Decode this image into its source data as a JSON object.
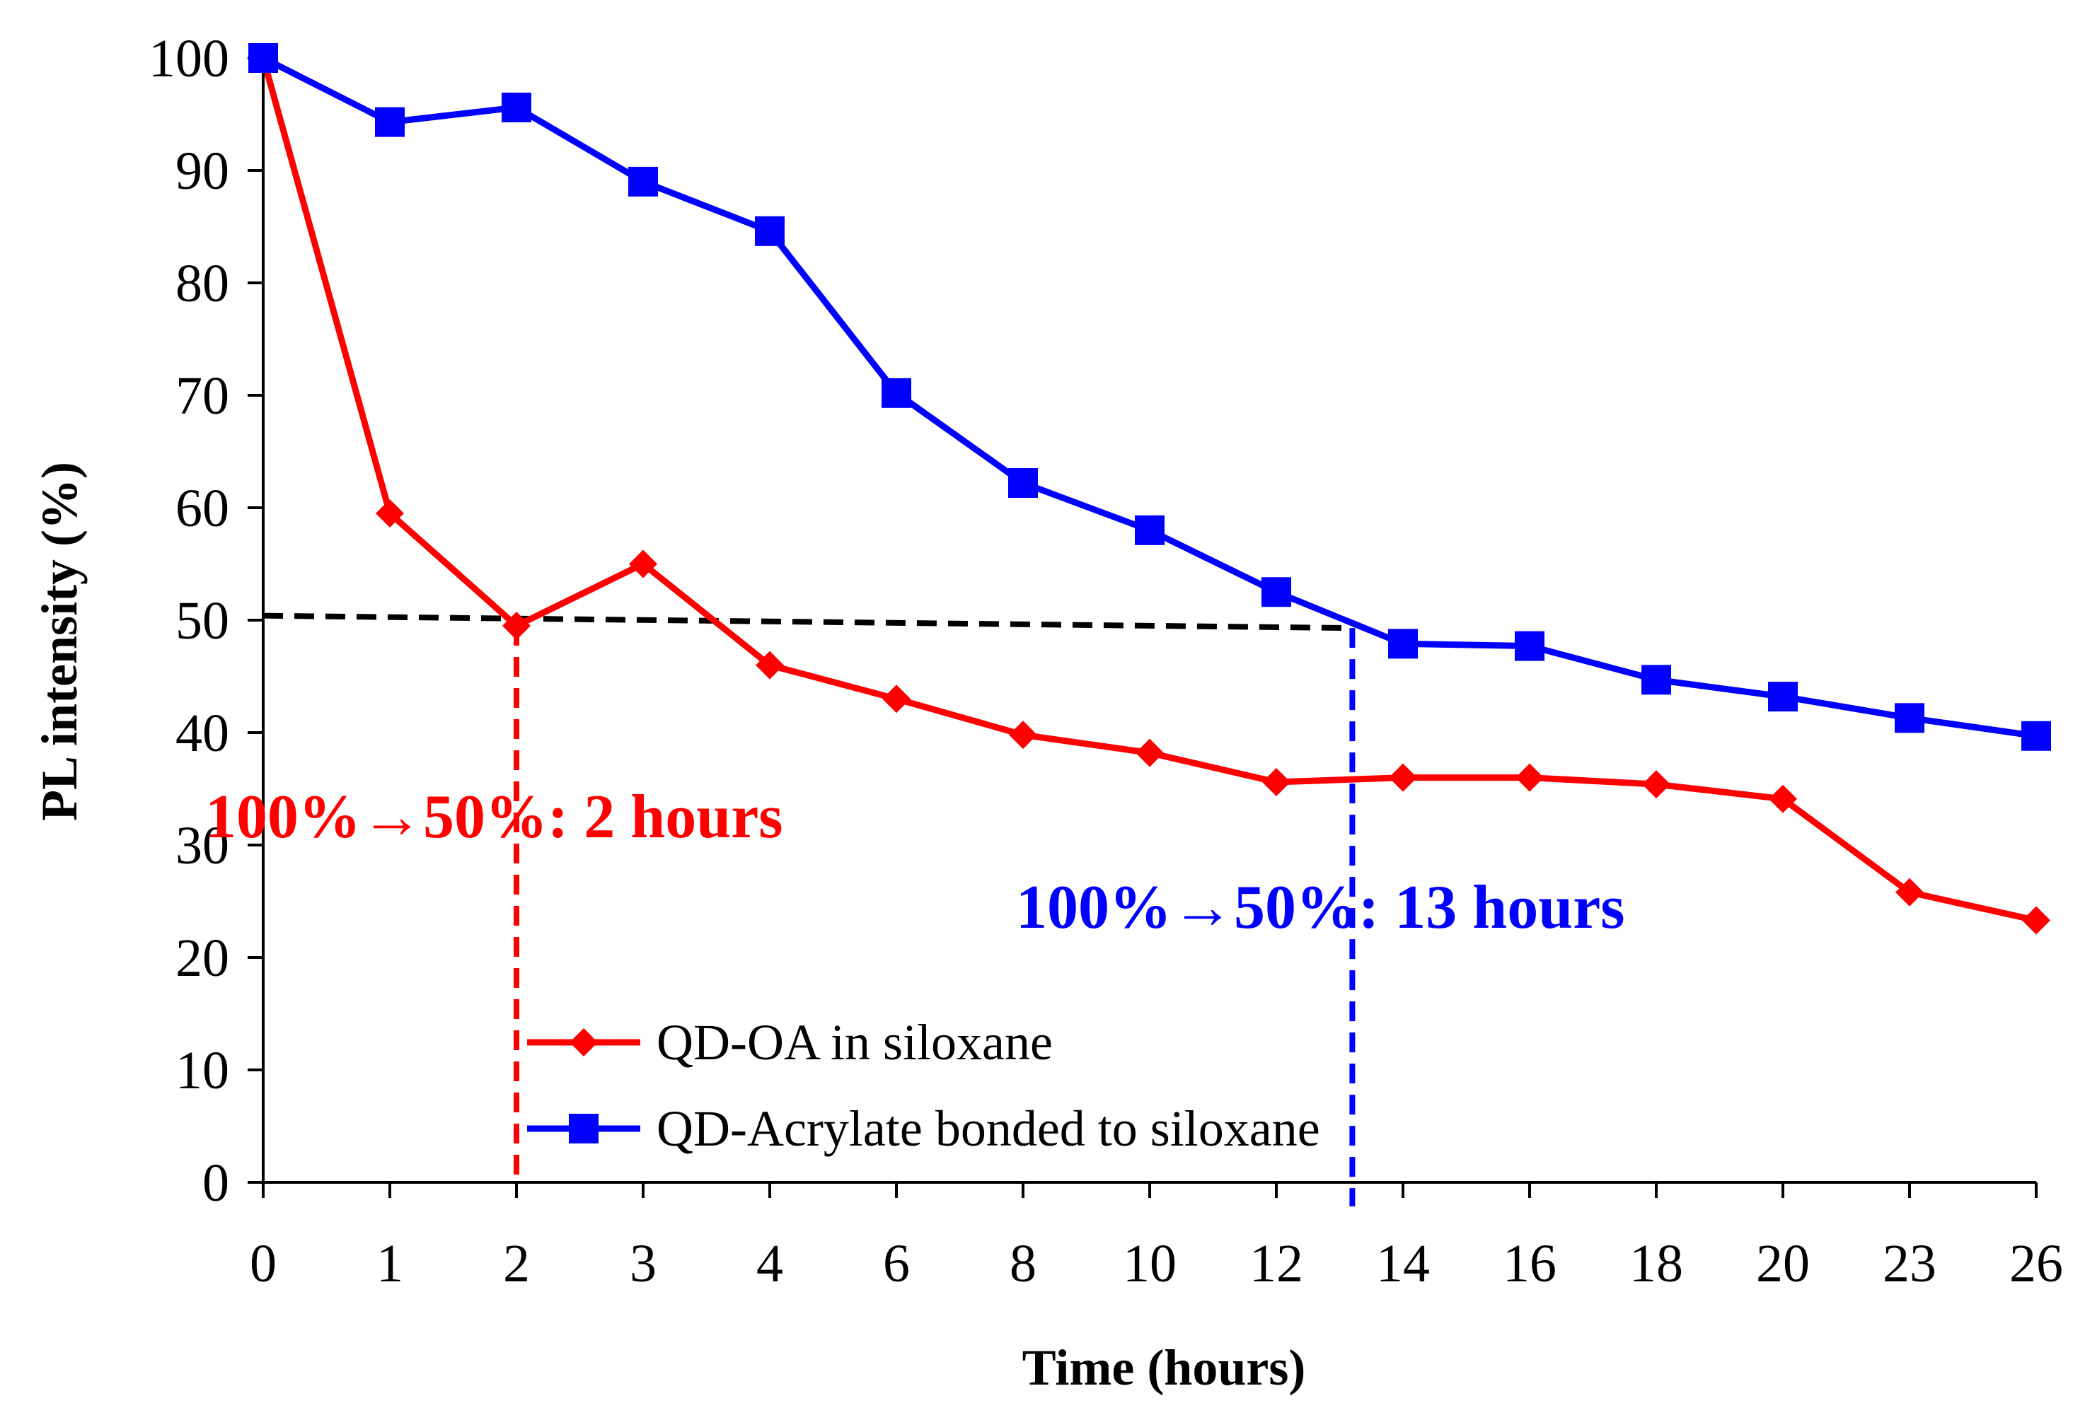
{
  "chart_data": {
    "type": "line",
    "title": "",
    "xlabel": "Time (hours)",
    "ylabel": "PL intensity (%)",
    "categories": [
      "0",
      "1",
      "2",
      "3",
      "4",
      "6",
      "8",
      "10",
      "12",
      "14",
      "16",
      "18",
      "20",
      "23",
      "26"
    ],
    "ylim": [
      0,
      100
    ],
    "yticks": [
      "0",
      "10",
      "20",
      "30",
      "40",
      "50",
      "60",
      "70",
      "80",
      "90",
      "100"
    ],
    "grid": false,
    "legend_position": "bottom-center",
    "series": [
      {
        "name": "QD-OA in siloxane",
        "color": "#ff0000",
        "marker": "diamond",
        "values": [
          100,
          59.5,
          49.5,
          55,
          46,
          43,
          39.8,
          38.2,
          35.6,
          36,
          36,
          35.4,
          34.1,
          25.8,
          23.3
        ]
      },
      {
        "name": "QD-Acrylate bonded to siloxane",
        "color": "#0000ff",
        "marker": "square",
        "values": [
          100,
          94.3,
          95.6,
          89,
          84.6,
          70.2,
          62.2,
          58,
          52.5,
          47.9,
          47.7,
          44.7,
          43.2,
          41.3,
          39.7
        ]
      }
    ],
    "reference_lines": {
      "halflife_line": {
        "color": "#000000",
        "from": {
          "x": 0,
          "y": 50.4
        },
        "to": {
          "x": 13.2,
          "y": 49.3
        }
      },
      "red_drop": {
        "color": "#ff0000",
        "x": 2,
        "y_from": 49.5,
        "y_to": 0
      },
      "blue_drop": {
        "color": "#0000ff",
        "x": 13.2,
        "y_from": 49.3,
        "y_to": 0
      }
    },
    "annotations": [
      {
        "text": "100%→50%: 2 hours",
        "color": "#ff0000"
      },
      {
        "text": "100%→50%: 13 hours",
        "color": "#0000ff"
      }
    ]
  }
}
